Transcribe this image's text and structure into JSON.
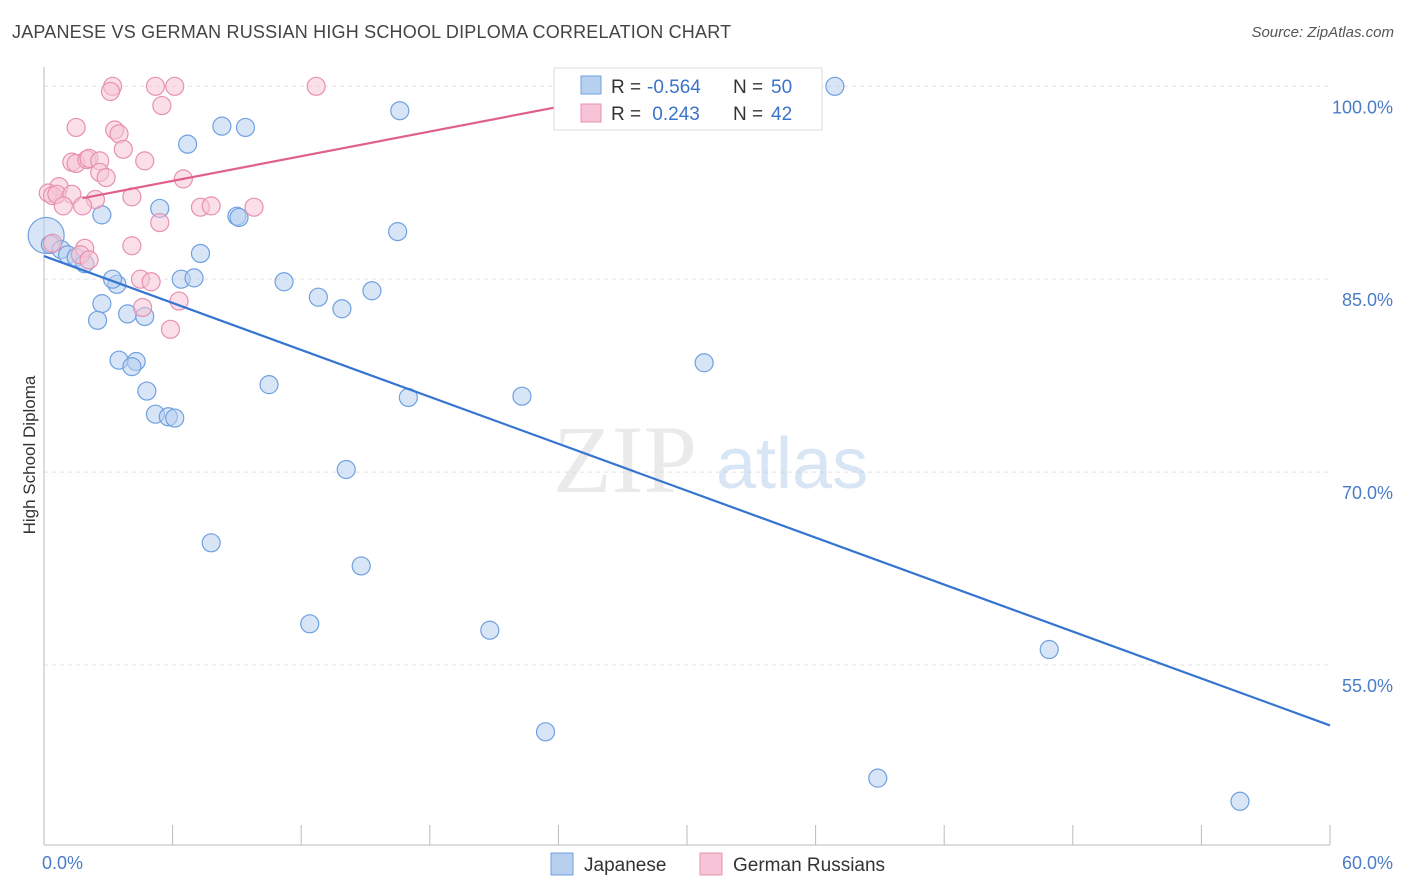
{
  "title": "JAPANESE VS GERMAN RUSSIAN HIGH SCHOOL DIPLOMA CORRELATION CHART",
  "source": "Source: ZipAtlas.com",
  "watermark": {
    "zip": "ZIP",
    "atlas": "atlas"
  },
  "chart_data": {
    "type": "scatter",
    "ylabel": "High School Diploma",
    "xlim": [
      0,
      60
    ],
    "ylim": [
      41,
      101.5
    ],
    "x_tick_labels": [
      {
        "value": 0,
        "label": "0.0%"
      },
      {
        "value": 60,
        "label": "60.0%"
      }
    ],
    "y_tick_labels": [
      {
        "value": 100,
        "label": "100.0%"
      },
      {
        "value": 85,
        "label": "85.0%"
      },
      {
        "value": 70,
        "label": "70.0%"
      },
      {
        "value": 55,
        "label": "55.0%"
      }
    ],
    "grid": true,
    "legend_position": "bottom-center",
    "stats": [
      {
        "r_label": "R =",
        "r_value": "-0.564",
        "n_label": "N =",
        "n_value": "50"
      },
      {
        "r_label": "R =",
        "r_value": " 0.243",
        "n_label": "N =",
        "n_value": "42"
      }
    ],
    "series": [
      {
        "name": "Japanese",
        "color": "#6fa0e0",
        "fill": "#b8d0f0",
        "line_color": "#3575d0",
        "trend": [
          [
            0,
            86.8
          ],
          [
            60,
            50.3
          ]
        ],
        "points": [
          [
            0.1,
            88.4
          ],
          [
            0.3,
            87.7
          ],
          [
            0.8,
            87.3
          ],
          [
            1.1,
            86.9
          ],
          [
            1.5,
            86.7
          ],
          [
            1.9,
            86.2
          ],
          [
            3.4,
            84.6
          ],
          [
            3.2,
            85.0
          ],
          [
            2.7,
            83.1
          ],
          [
            2.5,
            81.8
          ],
          [
            3.9,
            82.3
          ],
          [
            4.7,
            82.1
          ],
          [
            4.3,
            78.6
          ],
          [
            3.5,
            78.7
          ],
          [
            4.1,
            78.2
          ],
          [
            4.8,
            76.3
          ],
          [
            5.2,
            74.5
          ],
          [
            5.8,
            74.3
          ],
          [
            6.1,
            74.2
          ],
          [
            2.7,
            90.0
          ],
          [
            5.4,
            90.5
          ],
          [
            6.7,
            95.5
          ],
          [
            8.3,
            96.9
          ],
          [
            9.4,
            96.8
          ],
          [
            9.0,
            89.9
          ],
          [
            9.1,
            89.8
          ],
          [
            7.3,
            87.0
          ],
          [
            6.4,
            85.0
          ],
          [
            7.0,
            85.1
          ],
          [
            11.2,
            84.8
          ],
          [
            12.8,
            83.6
          ],
          [
            13.9,
            82.7
          ],
          [
            15.3,
            84.1
          ],
          [
            16.5,
            88.7
          ],
          [
            16.6,
            98.1
          ],
          [
            17.0,
            75.8
          ],
          [
            22.3,
            75.9
          ],
          [
            30.8,
            78.5
          ],
          [
            36.9,
            100.0
          ],
          [
            10.5,
            76.8
          ],
          [
            7.8,
            64.5
          ],
          [
            14.1,
            70.2
          ],
          [
            14.8,
            62.7
          ],
          [
            12.4,
            58.2
          ],
          [
            20.8,
            57.7
          ],
          [
            23.4,
            49.8
          ],
          [
            46.9,
            56.2
          ],
          [
            38.9,
            46.2
          ],
          [
            55.8,
            44.4
          ],
          [
            24.6,
            99.9
          ]
        ]
      },
      {
        "name": "German Russians",
        "color": "#e890b0",
        "fill": "#f6c4d6",
        "line_color": "#e0608c",
        "trend": [
          [
            1.8,
            91.3
          ],
          [
            29.0,
            100.0
          ]
        ],
        "points": [
          [
            3.2,
            100.0
          ],
          [
            3.1,
            99.6
          ],
          [
            5.2,
            100.0
          ],
          [
            6.1,
            100.0
          ],
          [
            12.7,
            100.0
          ],
          [
            5.5,
            98.5
          ],
          [
            1.5,
            96.8
          ],
          [
            3.3,
            96.6
          ],
          [
            3.5,
            96.3
          ],
          [
            3.7,
            95.1
          ],
          [
            1.3,
            94.1
          ],
          [
            1.5,
            94.0
          ],
          [
            2.0,
            94.3
          ],
          [
            2.1,
            94.4
          ],
          [
            2.6,
            94.2
          ],
          [
            4.7,
            94.2
          ],
          [
            2.6,
            93.3
          ],
          [
            2.9,
            92.9
          ],
          [
            6.5,
            92.8
          ],
          [
            0.7,
            92.2
          ],
          [
            0.2,
            91.7
          ],
          [
            0.4,
            91.5
          ],
          [
            0.6,
            91.6
          ],
          [
            1.3,
            91.6
          ],
          [
            2.4,
            91.2
          ],
          [
            4.1,
            91.4
          ],
          [
            0.9,
            90.7
          ],
          [
            1.8,
            90.7
          ],
          [
            7.3,
            90.6
          ],
          [
            7.8,
            90.7
          ],
          [
            9.8,
            90.6
          ],
          [
            5.4,
            89.4
          ],
          [
            0.4,
            87.8
          ],
          [
            4.1,
            87.6
          ],
          [
            1.9,
            87.4
          ],
          [
            1.7,
            86.9
          ],
          [
            2.1,
            86.5
          ],
          [
            4.5,
            85.0
          ],
          [
            5.0,
            84.8
          ],
          [
            6.3,
            83.3
          ],
          [
            4.6,
            82.8
          ],
          [
            5.9,
            81.1
          ]
        ]
      }
    ]
  }
}
